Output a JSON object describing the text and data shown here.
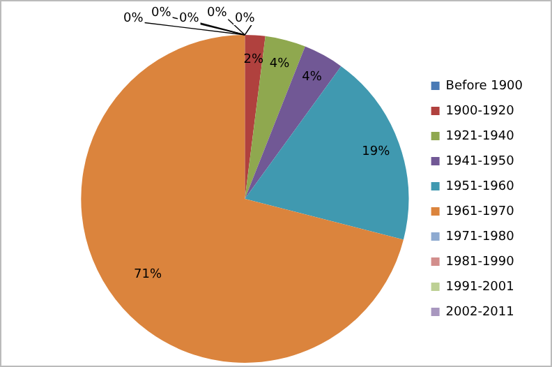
{
  "chart_data": {
    "type": "pie",
    "categories": [
      "Before 1900",
      "1900-1920",
      "1921-1940",
      "1941-1950",
      "1951-1960",
      "1961-1970",
      "1971-1980",
      "1981-1990",
      "1991-2001",
      "2002-2011"
    ],
    "values": [
      0,
      2,
      4,
      4,
      19,
      71,
      0,
      0,
      0,
      0
    ],
    "value_labels": [
      "0%",
      "2%",
      "4%",
      "4%",
      "19%",
      "71%",
      "0%",
      "0%",
      "0%",
      "0%"
    ],
    "colors": [
      "#4a7ab5",
      "#b0413e",
      "#8fa84f",
      "#715895",
      "#4099b0",
      "#db843d",
      "#8eaad0",
      "#d28e8c",
      "#bdd094",
      "#a897bf"
    ],
    "legend": "right"
  }
}
